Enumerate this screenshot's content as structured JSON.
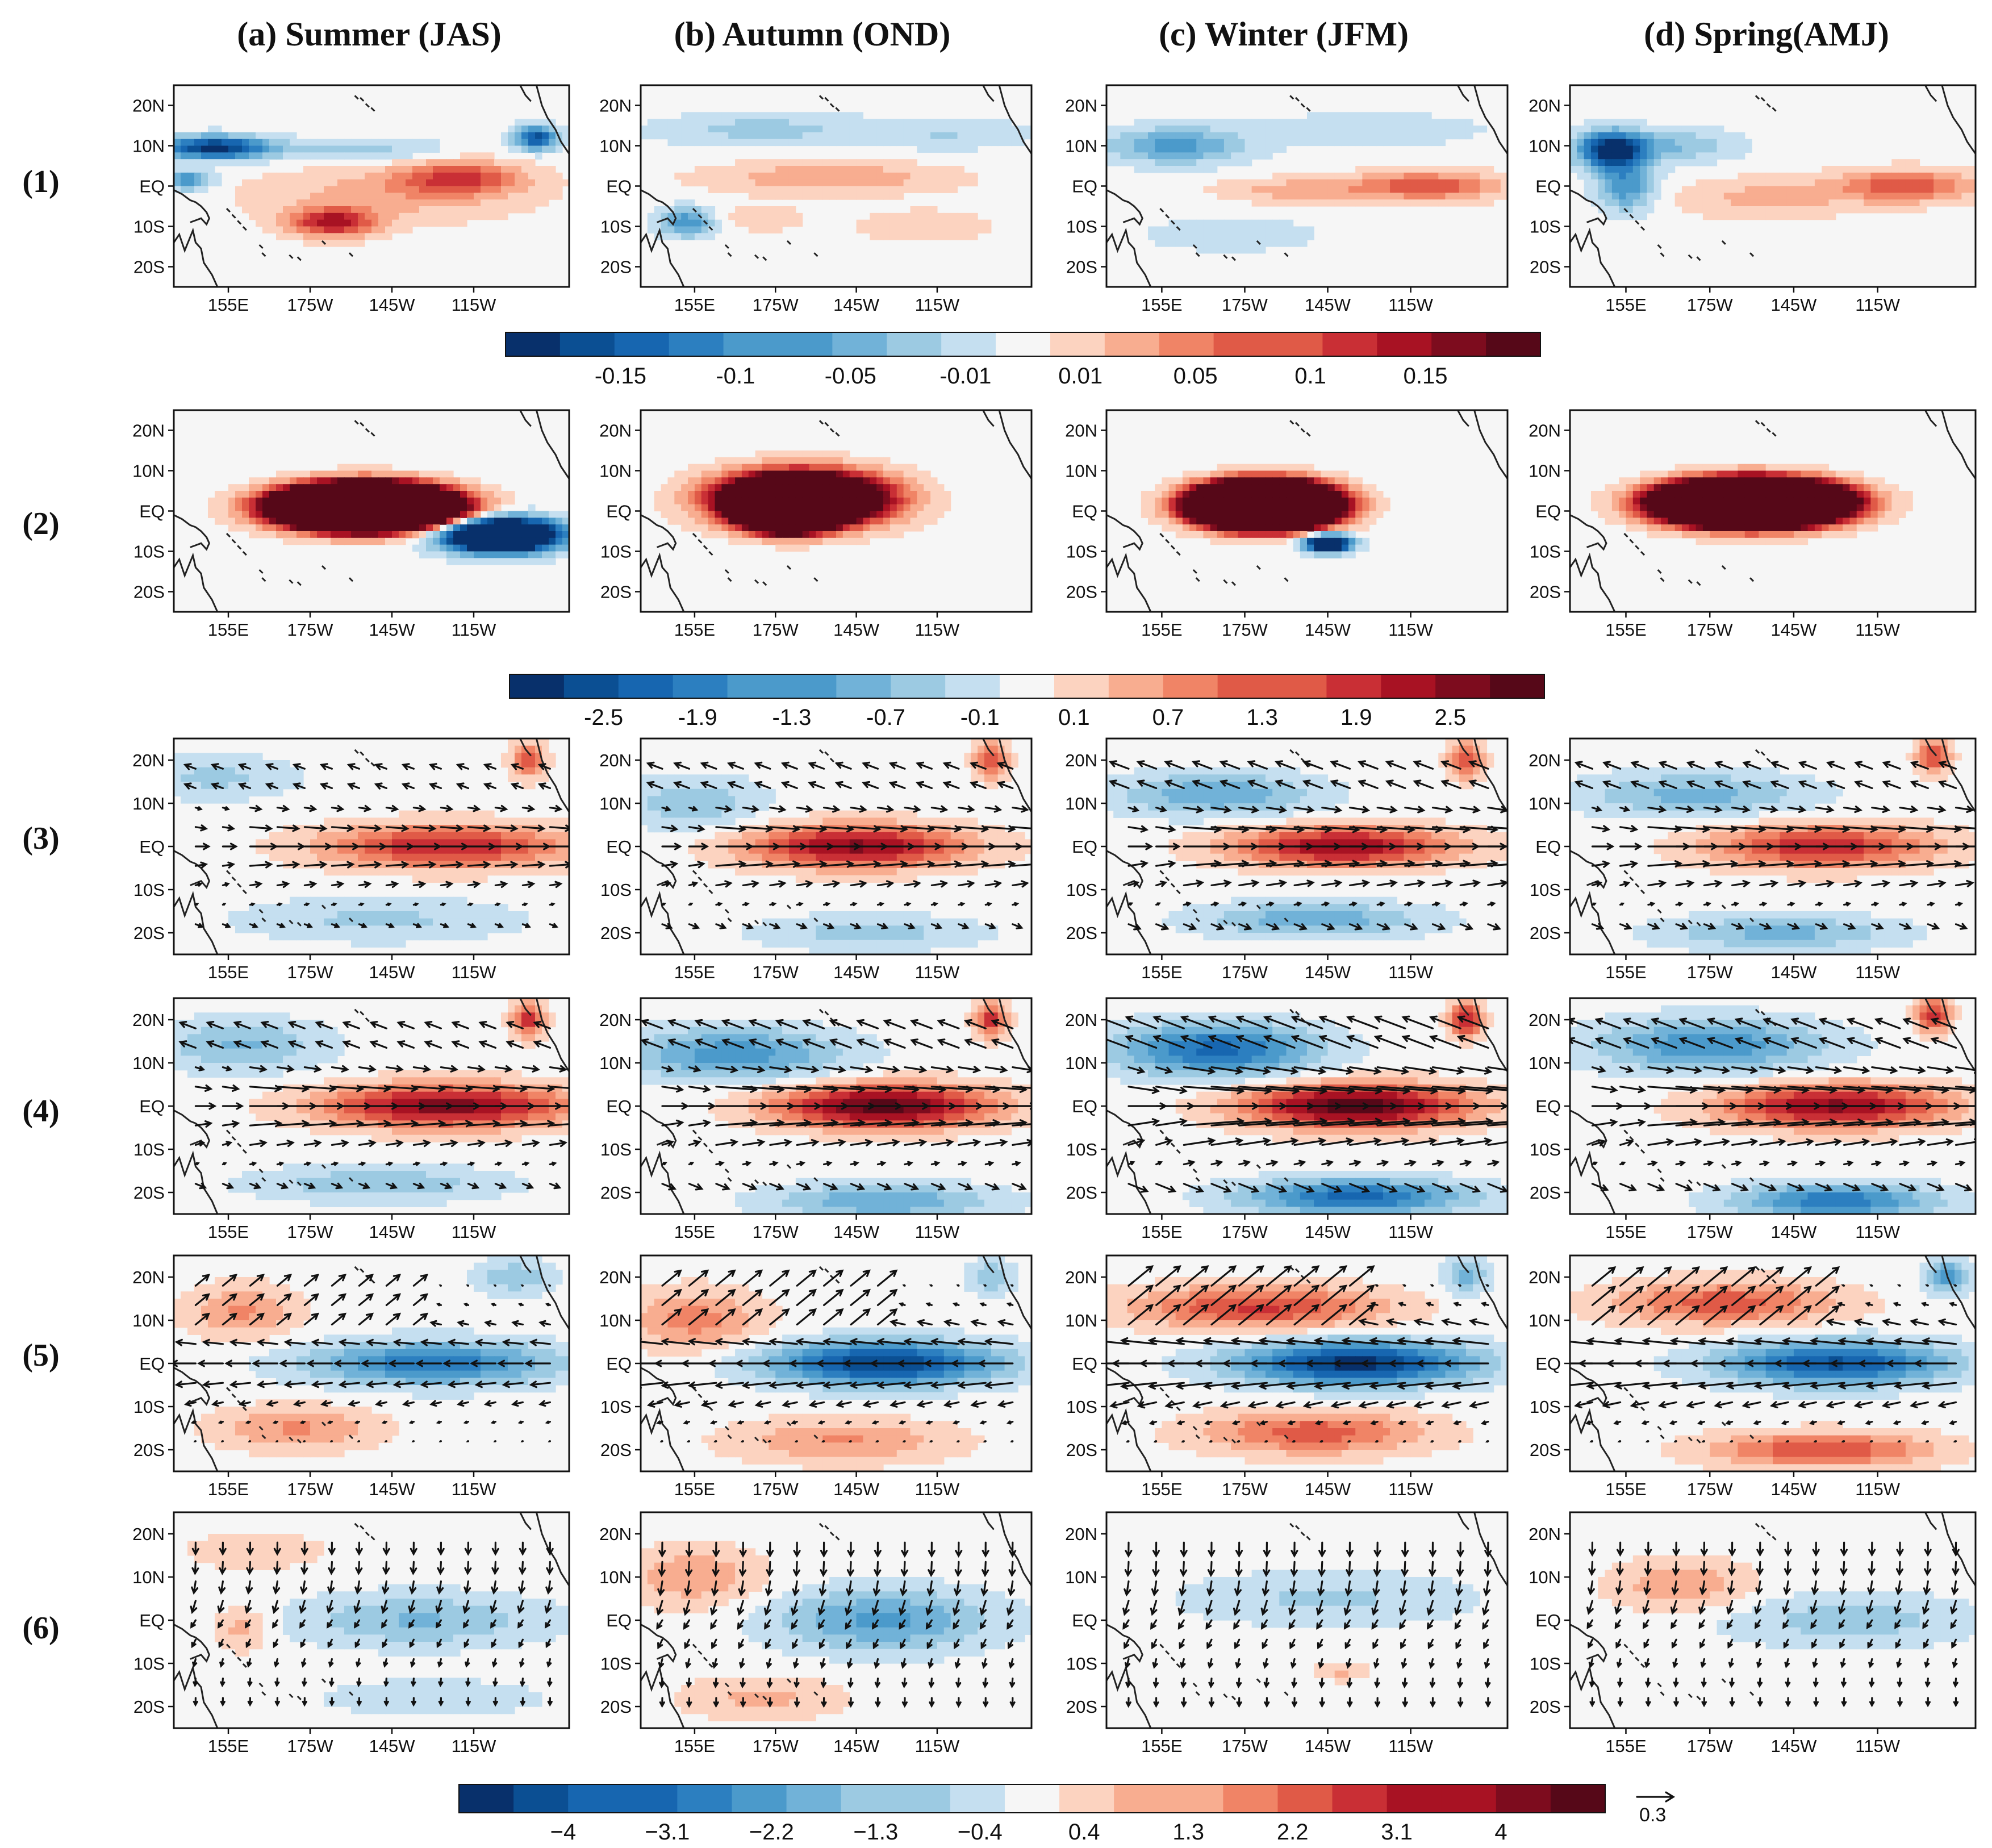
{
  "chart_data": {
    "type": "heatmap",
    "columns": [
      {
        "key": "a",
        "title": "(a) Summer (JAS)"
      },
      {
        "key": "b",
        "title": "(b) Autumn (OND)"
      },
      {
        "key": "c",
        "title": "(c) Winter (JFM)"
      },
      {
        "key": "d",
        "title": "(d) Spring(AMJ)"
      }
    ],
    "rows": [
      {
        "label": "(1)",
        "colorbar": 0,
        "vectors": false
      },
      {
        "label": "(2)",
        "colorbar": 0,
        "vectors": false
      },
      {
        "label": "(3)",
        "colorbar": 1,
        "vectors": true
      },
      {
        "label": "(4)",
        "colorbar": 1,
        "vectors": true
      },
      {
        "label": "(5)",
        "colorbar": 1,
        "vectors": true
      },
      {
        "label": "(6)",
        "colorbar": 1,
        "vectors": true
      }
    ],
    "x_ticks": [
      "155E",
      "175W",
      "145W",
      "115W"
    ],
    "y_ticks": [
      "20N",
      "10N",
      "EQ",
      "10S",
      "20S"
    ],
    "xlim_deg_east": [
      135,
      280
    ],
    "ylim_deg_north": [
      -25,
      25
    ],
    "colorbars": [
      {
        "name": "colorbar-1",
        "labels": [
          "-0.15",
          "-0.1",
          "-0.05",
          "-0.01",
          "0.01",
          "0.05",
          "0.1",
          "0.15"
        ],
        "range": [
          -0.175,
          0.175
        ],
        "levels": 19
      },
      {
        "name": "colorbar-2",
        "labels": [
          "-2.5",
          "-1.9",
          "-1.3",
          "-0.7",
          "-0.1",
          "0.1",
          "0.7",
          "1.3",
          "1.9",
          "2.5"
        ],
        "range": [
          -2.9,
          2.9
        ],
        "levels": 19
      },
      {
        "name": "colorbar-3",
        "labels": [
          "−4",
          "−3.1",
          "−2.2",
          "−1.3",
          "−0.4",
          "0.4",
          "1.3",
          "2.2",
          "3.1",
          "4"
        ],
        "range": [
          -4.6,
          4.6
        ],
        "levels": 21
      }
    ],
    "reference_vector": {
      "label": "0.3"
    },
    "palette": [
      "#08306b",
      "#0b4f93",
      "#1766b0",
      "#2c7fc0",
      "#4b9acb",
      "#71b2d8",
      "#9ccae2",
      "#c5dff0",
      "#f6f6f6",
      "#fcd3c0",
      "#f8ad90",
      "#f08466",
      "#e05a47",
      "#c92f35",
      "#a81223",
      "#7d0c1e",
      "#560818"
    ],
    "fields": {
      "1a": [
        {
          "lon": 150,
          "lat": 9.5,
          "amp": -0.17,
          "sx": 20,
          "sy": 2.8
        },
        {
          "lon": 140,
          "lat": 1.5,
          "amp": -0.09,
          "sx": 9,
          "sy": 2.5
        },
        {
          "lon": 205,
          "lat": 9,
          "amp": -0.04,
          "sx": 30,
          "sy": 3
        },
        {
          "lon": 268,
          "lat": 12,
          "amp": -0.14,
          "sx": 8,
          "sy": 3
        },
        {
          "lon": 240,
          "lat": 2,
          "amp": 0.09,
          "sx": 22,
          "sy": 4
        },
        {
          "lon": 193,
          "lat": -9,
          "amp": 0.12,
          "sx": 16,
          "sy": 3.5
        },
        {
          "lon": 215,
          "lat": -2,
          "amp": 0.04,
          "sx": 50,
          "sy": 7
        }
      ],
      "1b": [
        {
          "lon": 152,
          "lat": -9,
          "amp": -0.09,
          "sx": 10,
          "sy": 3.5
        },
        {
          "lon": 180,
          "lat": 14,
          "amp": -0.04,
          "sx": 40,
          "sy": 4
        },
        {
          "lon": 250,
          "lat": 13,
          "amp": -0.03,
          "sx": 30,
          "sy": 4
        },
        {
          "lon": 205,
          "lat": 2,
          "amp": 0.05,
          "sx": 45,
          "sy": 4
        },
        {
          "lon": 240,
          "lat": -10,
          "amp": 0.03,
          "sx": 25,
          "sy": 4
        },
        {
          "lon": 180,
          "lat": -8,
          "amp": 0.03,
          "sx": 15,
          "sy": 3
        }
      ],
      "1c": [
        {
          "lon": 160,
          "lat": 10,
          "amp": -0.08,
          "sx": 25,
          "sy": 4.5
        },
        {
          "lon": 230,
          "lat": 14,
          "amp": -0.03,
          "sx": 40,
          "sy": 4
        },
        {
          "lon": 250,
          "lat": 0,
          "amp": 0.09,
          "sx": 28,
          "sy": 3.5
        },
        {
          "lon": 200,
          "lat": -1,
          "amp": 0.04,
          "sx": 25,
          "sy": 3
        },
        {
          "lon": 180,
          "lat": -12,
          "amp": -0.03,
          "sx": 30,
          "sy": 4
        }
      ],
      "1d": [
        {
          "lon": 150,
          "lat": 9,
          "amp": -0.18,
          "sx": 12,
          "sy": 4.5
        },
        {
          "lon": 155,
          "lat": 0,
          "amp": -0.09,
          "sx": 10,
          "sy": 6
        },
        {
          "lon": 175,
          "lat": 10,
          "amp": -0.05,
          "sx": 20,
          "sy": 4
        },
        {
          "lon": 255,
          "lat": 0,
          "amp": 0.09,
          "sx": 25,
          "sy": 4
        },
        {
          "lon": 205,
          "lat": -3,
          "amp": 0.04,
          "sx": 30,
          "sy": 5
        }
      ],
      "2a": [
        {
          "lon": 205,
          "lat": 1,
          "amp": 1.4,
          "sx": 26,
          "sy": 4.5
        },
        {
          "lon": 255,
          "lat": -6,
          "amp": -0.4,
          "sx": 20,
          "sy": 4
        }
      ],
      "2b": [
        {
          "lon": 190,
          "lat": 1,
          "amp": 2.1,
          "sx": 13,
          "sy": 4
        },
        {
          "lon": 195,
          "lat": 3,
          "amp": 0.5,
          "sx": 28,
          "sy": 6
        }
      ],
      "2c": [
        {
          "lon": 192,
          "lat": 1.5,
          "amp": 1.6,
          "sx": 20,
          "sy": 4.5
        },
        {
          "lon": 215,
          "lat": -8,
          "amp": -0.3,
          "sx": 8,
          "sy": 2
        }
      ],
      "2d": [
        {
          "lon": 200,
          "lat": 2,
          "amp": 1.5,
          "sx": 26,
          "sy": 4.5
        }
      ],
      "3a": [
        {
          "lon": 235,
          "lat": 0,
          "amp": 1.9,
          "sx": 45,
          "sy": 5
        },
        {
          "lon": 150,
          "lat": 16,
          "amp": -0.6,
          "sx": 30,
          "sy": 5
        },
        {
          "lon": 210,
          "lat": -17,
          "amp": -0.6,
          "sx": 50,
          "sy": 5
        },
        {
          "lon": 265,
          "lat": 20,
          "amp": 1.5,
          "sx": 6,
          "sy": 4
        }
      ],
      "3b": [
        {
          "lon": 215,
          "lat": 0,
          "amp": 2.3,
          "sx": 40,
          "sy": 5
        },
        {
          "lon": 155,
          "lat": 10,
          "amp": -0.8,
          "sx": 25,
          "sy": 6
        },
        {
          "lon": 220,
          "lat": -20,
          "amp": -0.7,
          "sx": 40,
          "sy": 4
        },
        {
          "lon": 265,
          "lat": 20,
          "amp": 1.6,
          "sx": 6,
          "sy": 4
        }
      ],
      "3c": [
        {
          "lon": 220,
          "lat": 0,
          "amp": 2.2,
          "sx": 40,
          "sy": 4.5
        },
        {
          "lon": 175,
          "lat": 12,
          "amp": -1.2,
          "sx": 35,
          "sy": 5
        },
        {
          "lon": 210,
          "lat": -17,
          "amp": -1.1,
          "sx": 40,
          "sy": 4
        },
        {
          "lon": 265,
          "lat": 20,
          "amp": 1.6,
          "sx": 6,
          "sy": 4
        }
      ],
      "3d": [
        {
          "lon": 225,
          "lat": 0,
          "amp": 1.8,
          "sx": 40,
          "sy": 5
        },
        {
          "lon": 180,
          "lat": 12,
          "amp": -1.0,
          "sx": 40,
          "sy": 5
        },
        {
          "lon": 210,
          "lat": -20,
          "amp": -1.0,
          "sx": 40,
          "sy": 4
        },
        {
          "lon": 265,
          "lat": 21,
          "amp": 1.6,
          "sx": 6,
          "sy": 4
        }
      ],
      "4a": [
        {
          "lon": 235,
          "lat": 0,
          "amp": 2.4,
          "sx": 45,
          "sy": 5
        },
        {
          "lon": 160,
          "lat": 14,
          "amp": -0.9,
          "sx": 30,
          "sy": 6
        },
        {
          "lon": 210,
          "lat": -18,
          "amp": -0.8,
          "sx": 45,
          "sy": 4
        },
        {
          "lon": 265,
          "lat": 20,
          "amp": 1.8,
          "sx": 6,
          "sy": 4
        }
      ],
      "4b": [
        {
          "lon": 225,
          "lat": 0,
          "amp": 2.7,
          "sx": 40,
          "sy": 5
        },
        {
          "lon": 170,
          "lat": 12,
          "amp": -1.4,
          "sx": 40,
          "sy": 6
        },
        {
          "lon": 225,
          "lat": -22,
          "amp": -1.2,
          "sx": 40,
          "sy": 4
        },
        {
          "lon": 265,
          "lat": 20,
          "amp": 1.8,
          "sx": 6,
          "sy": 4
        }
      ],
      "4c": [
        {
          "lon": 225,
          "lat": 0,
          "amp": 2.8,
          "sx": 40,
          "sy": 5
        },
        {
          "lon": 175,
          "lat": 13,
          "amp": -2.0,
          "sx": 35,
          "sy": 6
        },
        {
          "lon": 225,
          "lat": -21,
          "amp": -2.0,
          "sx": 40,
          "sy": 4
        },
        {
          "lon": 265,
          "lat": 20,
          "amp": 2.0,
          "sx": 6,
          "sy": 4
        }
      ],
      "4d": [
        {
          "lon": 230,
          "lat": 0,
          "amp": 2.3,
          "sx": 40,
          "sy": 5
        },
        {
          "lon": 185,
          "lat": 14,
          "amp": -1.5,
          "sx": 40,
          "sy": 6
        },
        {
          "lon": 230,
          "lat": -22,
          "amp": -1.8,
          "sx": 35,
          "sy": 4
        },
        {
          "lon": 265,
          "lat": 21,
          "amp": 1.8,
          "sx": 6,
          "sy": 4
        }
      ],
      "5a": [
        {
          "lon": 230,
          "lat": 0,
          "amp": -1.8,
          "sx": 45,
          "sy": 5
        },
        {
          "lon": 160,
          "lat": 12,
          "amp": 0.9,
          "sx": 20,
          "sy": 6
        },
        {
          "lon": 180,
          "lat": -15,
          "amp": 0.9,
          "sx": 30,
          "sy": 5
        },
        {
          "lon": 260,
          "lat": 20,
          "amp": -0.8,
          "sx": 15,
          "sy": 4
        }
      ],
      "5b": [
        {
          "lon": 225,
          "lat": 0,
          "amp": -2.6,
          "sx": 42,
          "sy": 5
        },
        {
          "lon": 155,
          "lat": 10,
          "amp": 1.0,
          "sx": 25,
          "sy": 7
        },
        {
          "lon": 210,
          "lat": -18,
          "amp": 0.9,
          "sx": 40,
          "sy": 5
        },
        {
          "lon": 265,
          "lat": 20,
          "amp": -0.9,
          "sx": 8,
          "sy": 4
        }
      ],
      "5c": [
        {
          "lon": 225,
          "lat": 0,
          "amp": -2.7,
          "sx": 42,
          "sy": 5
        },
        {
          "lon": 190,
          "lat": 13,
          "amp": 1.6,
          "sx": 45,
          "sy": 5
        },
        {
          "lon": 210,
          "lat": -16,
          "amp": 1.4,
          "sx": 40,
          "sy": 5
        },
        {
          "lon": 265,
          "lat": 20,
          "amp": -1.0,
          "sx": 8,
          "sy": 4
        }
      ],
      "5d": [
        {
          "lon": 230,
          "lat": 0,
          "amp": -2.3,
          "sx": 40,
          "sy": 5
        },
        {
          "lon": 190,
          "lat": 14,
          "amp": 1.4,
          "sx": 40,
          "sy": 5
        },
        {
          "lon": 225,
          "lat": -20,
          "amp": 1.5,
          "sx": 40,
          "sy": 4
        },
        {
          "lon": 270,
          "lat": 20,
          "amp": -1.3,
          "sx": 8,
          "sy": 4
        }
      ],
      "6a": [
        {
          "lon": 225,
          "lat": 0,
          "amp": -0.9,
          "sx": 45,
          "sy": 6
        },
        {
          "lon": 160,
          "lat": -2,
          "amp": 0.7,
          "sx": 10,
          "sy": 5
        },
        {
          "lon": 165,
          "lat": 16,
          "amp": 0.5,
          "sx": 25,
          "sy": 4
        },
        {
          "lon": 230,
          "lat": -18,
          "amp": -0.5,
          "sx": 40,
          "sy": 4
        }
      ],
      "6b": [
        {
          "lon": 225,
          "lat": 0,
          "amp": -1.3,
          "sx": 40,
          "sy": 7
        },
        {
          "lon": 155,
          "lat": 10,
          "amp": 0.8,
          "sx": 25,
          "sy": 7
        },
        {
          "lon": 180,
          "lat": -18,
          "amp": 0.6,
          "sx": 30,
          "sy": 5
        }
      ],
      "6c": [
        {
          "lon": 215,
          "lat": 5,
          "amp": -0.6,
          "sx": 50,
          "sy": 6
        },
        {
          "lon": 220,
          "lat": -12,
          "amp": 0.6,
          "sx": 10,
          "sy": 2
        }
      ],
      "6d": [
        {
          "lon": 235,
          "lat": 0,
          "amp": -0.7,
          "sx": 45,
          "sy": 6
        },
        {
          "lon": 175,
          "lat": 8,
          "amp": 0.8,
          "sx": 25,
          "sy": 6
        }
      ]
    },
    "winds": {
      "3a": {
        "mag": 0.22,
        "mode": "west"
      },
      "3b": {
        "mag": 0.3,
        "mode": "west"
      },
      "3c": {
        "mag": 0.38,
        "mode": "west"
      },
      "3d": {
        "mag": 0.34,
        "mode": "west"
      },
      "4a": {
        "mag": 0.32,
        "mode": "west"
      },
      "4b": {
        "mag": 0.42,
        "mode": "west"
      },
      "4c": {
        "mag": 0.62,
        "mode": "west"
      },
      "4d": {
        "mag": 0.5,
        "mode": "west"
      },
      "5a": {
        "mag": 0.2,
        "mode": "east"
      },
      "5b": {
        "mag": 0.28,
        "mode": "east"
      },
      "5c": {
        "mag": 0.36,
        "mode": "east"
      },
      "5d": {
        "mag": 0.34,
        "mode": "east"
      },
      "6a": {
        "mag": 0.12,
        "mode": "merid"
      },
      "6b": {
        "mag": 0.14,
        "mode": "merid"
      },
      "6c": {
        "mag": 0.14,
        "mode": "merid"
      },
      "6d": {
        "mag": 0.13,
        "mode": "merid"
      }
    }
  }
}
